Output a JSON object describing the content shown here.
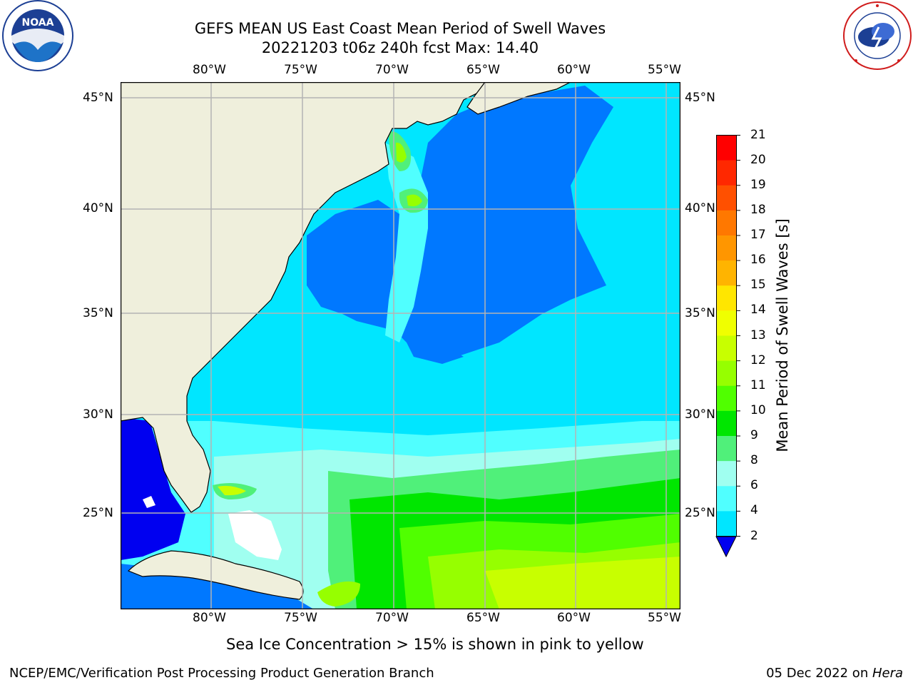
{
  "header": {
    "title_line1": "GEFS MEAN US East Coast Mean Period of Swell Waves",
    "title_line2": "20221203 t06z 240h fcst   Max: 14.40"
  },
  "logos": {
    "left": {
      "icon": "noaa-logo",
      "text": "NOAA",
      "ring_text": "NATIONAL OCEANIC AND ATMOSPHERIC ADMINISTRATION · U.S. DEPARTMENT OF COMMERCE"
    },
    "right": {
      "icon": "nws-logo",
      "ring_text": "NATIONAL WEATHER SERVICE"
    }
  },
  "map": {
    "lon_labels": [
      "80°W",
      "75°W",
      "70°W",
      "65°W",
      "60°W",
      "55°W"
    ],
    "lat_labels": [
      "45°N",
      "40°N",
      "35°N",
      "30°N",
      "25°N"
    ]
  },
  "colorbar": {
    "label": "Mean Period of Swell Waves [s]",
    "ticks": [
      "21",
      "20",
      "19",
      "18",
      "17",
      "16",
      "15",
      "14",
      "13",
      "12",
      "11",
      "10",
      "9",
      "8",
      "6",
      "4",
      "2"
    ],
    "colors": [
      "#ff0000",
      "#ff2800",
      "#ff5000",
      "#ff7800",
      "#ff9600",
      "#ffb400",
      "#ffe600",
      "#f0ff00",
      "#c8ff00",
      "#96ff00",
      "#50ff00",
      "#00e600",
      "#50f07a",
      "#a0fff0",
      "#50ffff",
      "#00e6ff",
      "#0078ff"
    ],
    "under_color": "#0000f0"
  },
  "legend_note": "Sea Ice Concentration > 15% is shown in pink to yellow",
  "footer": {
    "left": "NCEP/EMC/Verification Post Processing Product Generation Branch",
    "right_date": "05 Dec 2022 on ",
    "right_host": "Hera"
  }
}
